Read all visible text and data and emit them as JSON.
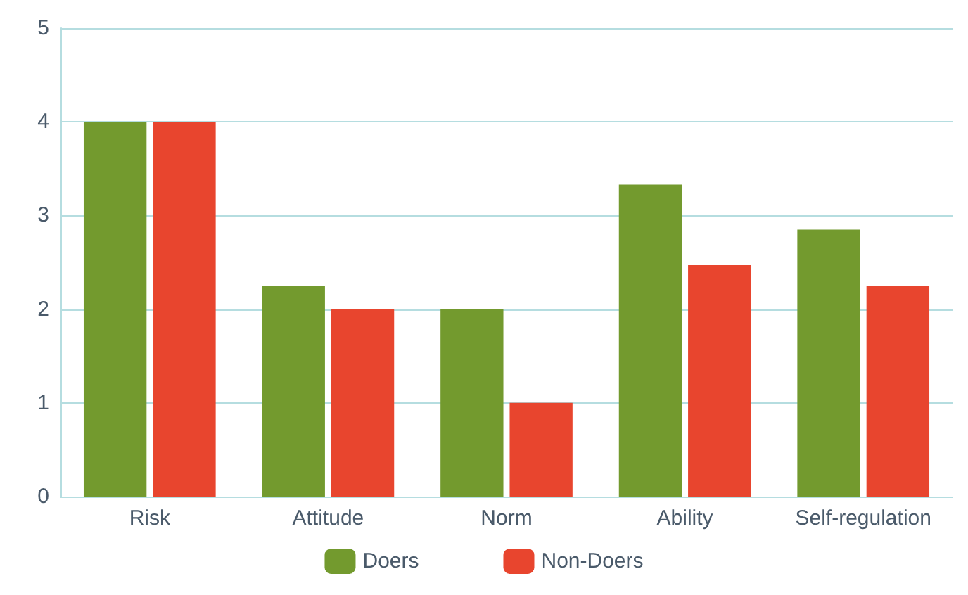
{
  "chart_data": {
    "type": "bar",
    "categories": [
      "Risk",
      "Attitude",
      "Norm",
      "Ability",
      "Self-regulation"
    ],
    "series": [
      {
        "name": "Doers",
        "color": "#739a2e",
        "values": [
          4,
          2.25,
          2,
          3.33,
          2.85
        ]
      },
      {
        "name": "Non-Doers",
        "color": "#e8452e",
        "values": [
          4,
          2,
          1,
          2.47,
          2.25
        ]
      }
    ],
    "ylim": [
      0,
      5
    ],
    "yticks": [
      0,
      1,
      2,
      3,
      4,
      5
    ],
    "grid": "y",
    "legend": "bottom"
  }
}
